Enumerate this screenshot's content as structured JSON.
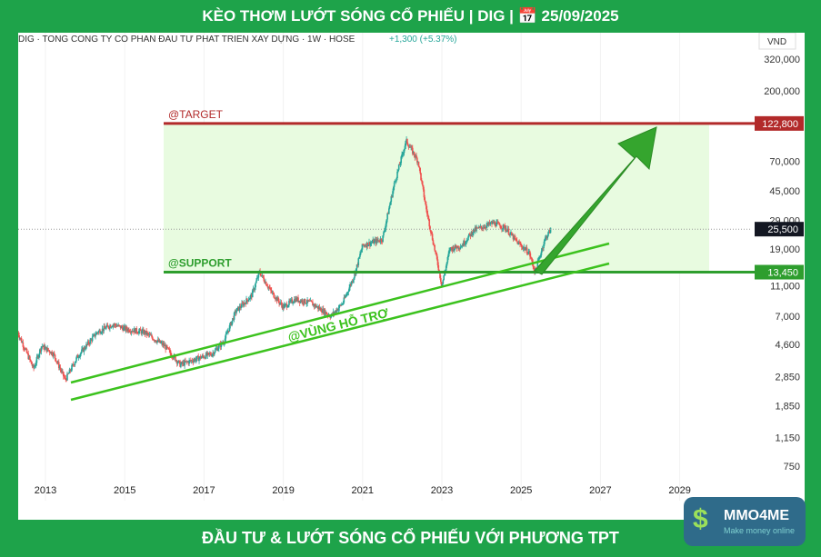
{
  "title": "KÈO THƠM LƯỚT SÓNG CỔ PHIẾU | DIG | 📅 25/09/2025",
  "footer": "ĐẦU TƯ & LƯỚT SÓNG CỔ PHIẾU VỚI PHƯƠNG TPT",
  "logo": {
    "name": "MMO4ME",
    "tagline": "Make money online"
  },
  "chart_header": {
    "symbol_line": "DIG · TONG CONG TY CO PHAN ĐAU TƯ PHAT TRIEN XAY DỰNG · 1W · HOSE",
    "change": "+1,300 (+5.37%)",
    "currency": "VND"
  },
  "chart_data": {
    "type": "candlestick",
    "scale": "log",
    "x_ticks": [
      "2013",
      "2015",
      "2017",
      "2019",
      "2021",
      "2023",
      "2025",
      "2027",
      "2029"
    ],
    "y_ticks": [
      "320,000",
      "200,000",
      "70,000",
      "45,000",
      "29,000",
      "19,000",
      "11,000",
      "7,000",
      "4,600",
      "2,850",
      "1,850",
      "1,150",
      "750"
    ],
    "price_labels": [
      {
        "text": "122,800",
        "value": 122800,
        "color": "#b22a2a"
      },
      {
        "text": "25,500",
        "value": 25500,
        "color": "#131722"
      },
      {
        "text": "13,450",
        "value": 13450,
        "color": "#2e9e2e"
      }
    ],
    "annotations": {
      "target": "@TARGET",
      "support": "@SUPPORT",
      "zone": "@VÙNG HỖ TRỢ"
    },
    "series": [
      [
        2012.3,
        5500
      ],
      [
        2012.5,
        4200
      ],
      [
        2012.7,
        3200
      ],
      [
        2012.9,
        4500
      ],
      [
        2013.2,
        4000
      ],
      [
        2013.5,
        2700
      ],
      [
        2013.8,
        3800
      ],
      [
        2014.3,
        5500
      ],
      [
        2014.7,
        6200
      ],
      [
        2015.0,
        5800
      ],
      [
        2015.5,
        5500
      ],
      [
        2016.0,
        4500
      ],
      [
        2016.4,
        3400
      ],
      [
        2016.8,
        3700
      ],
      [
        2017.2,
        4000
      ],
      [
        2017.5,
        4800
      ],
      [
        2017.8,
        7500
      ],
      [
        2018.2,
        9500
      ],
      [
        2018.4,
        13500
      ],
      [
        2018.7,
        10000
      ],
      [
        2019.0,
        8000
      ],
      [
        2019.3,
        9000
      ],
      [
        2019.7,
        8500
      ],
      [
        2020.2,
        7000
      ],
      [
        2020.5,
        8500
      ],
      [
        2020.8,
        13000
      ],
      [
        2021.0,
        20000
      ],
      [
        2021.5,
        22000
      ],
      [
        2021.8,
        50000
      ],
      [
        2022.1,
        95000
      ],
      [
        2022.4,
        70000
      ],
      [
        2022.6,
        35000
      ],
      [
        2022.9,
        15000
      ],
      [
        2023.0,
        11000
      ],
      [
        2023.2,
        19000
      ],
      [
        2023.5,
        20000
      ],
      [
        2023.8,
        25000
      ],
      [
        2024.3,
        28000
      ],
      [
        2024.6,
        26000
      ],
      [
        2024.9,
        21000
      ],
      [
        2025.2,
        18000
      ],
      [
        2025.35,
        13500
      ],
      [
        2025.6,
        22000
      ],
      [
        2025.75,
        25500
      ]
    ],
    "colors": {
      "up": "#26a69a",
      "down": "#ef5350",
      "target": "#b22a2a",
      "support": "#2e9e2e",
      "zone_fill": "#e8fbe0",
      "arrow": "#35a52e"
    }
  }
}
